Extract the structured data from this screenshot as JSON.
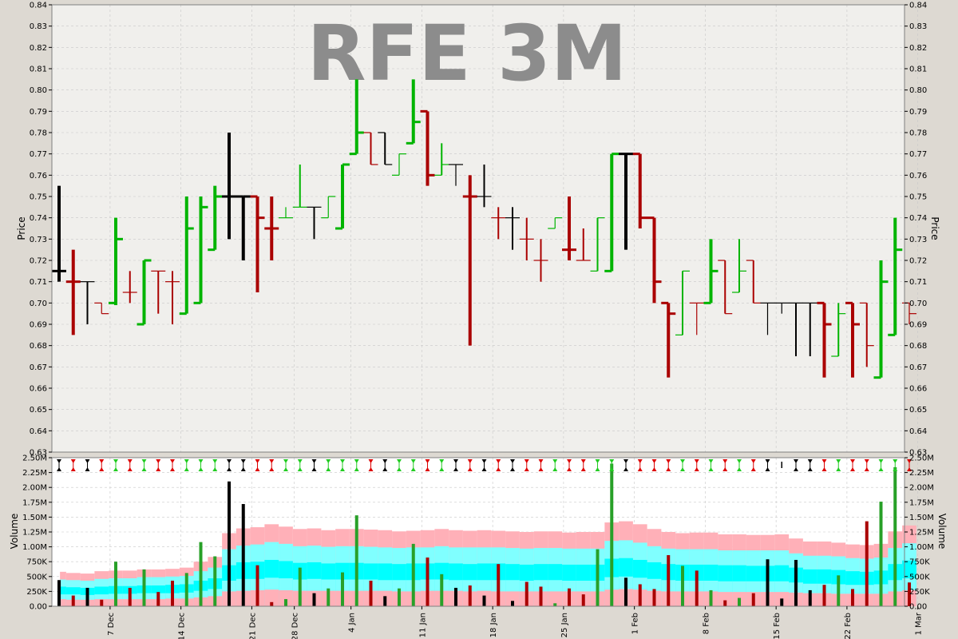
{
  "chart_data": {
    "type": "ohlc",
    "title": "RFE 3M",
    "price_panel": {
      "ylabel": "Price",
      "ylim": [
        0.63,
        0.84
      ],
      "yticks": [
        "0.63",
        "0.64",
        "0.65",
        "0.66",
        "0.67",
        "0.68",
        "0.69",
        "0.70",
        "0.71",
        "0.72",
        "0.73",
        "0.74",
        "0.75",
        "0.76",
        "0.77",
        "0.78",
        "0.79",
        "0.80",
        "0.81",
        "0.82",
        "0.83",
        "0.84"
      ],
      "bars": [
        {
          "t": 0,
          "o": 0.715,
          "h": 0.755,
          "l": 0.71,
          "c": 0.715,
          "col": "black"
        },
        {
          "t": 1,
          "o": 0.71,
          "h": 0.725,
          "l": 0.685,
          "c": 0.71,
          "col": "red"
        },
        {
          "t": 2,
          "o": 0.71,
          "h": 0.71,
          "l": 0.69,
          "c": 0.71,
          "col": "black"
        },
        {
          "t": 3,
          "o": 0.7,
          "h": 0.7,
          "l": 0.695,
          "c": 0.695,
          "col": "red"
        },
        {
          "t": 4,
          "o": 0.7,
          "h": 0.74,
          "l": 0.699,
          "c": 0.73,
          "col": "green"
        },
        {
          "t": 5,
          "o": 0.705,
          "h": 0.715,
          "l": 0.7,
          "c": 0.705,
          "col": "red"
        },
        {
          "t": 6,
          "o": 0.69,
          "h": 0.72,
          "l": 0.69,
          "c": 0.72,
          "col": "green"
        },
        {
          "t": 7,
          "o": 0.715,
          "h": 0.715,
          "l": 0.695,
          "c": 0.715,
          "col": "red"
        },
        {
          "t": 8,
          "o": 0.71,
          "h": 0.715,
          "l": 0.69,
          "c": 0.71,
          "col": "red"
        },
        {
          "t": 9,
          "o": 0.695,
          "h": 0.75,
          "l": 0.695,
          "c": 0.735,
          "col": "green"
        },
        {
          "t": 10,
          "o": 0.7,
          "h": 0.75,
          "l": 0.7,
          "c": 0.745,
          "col": "green"
        },
        {
          "t": 11,
          "o": 0.725,
          "h": 0.755,
          "l": 0.725,
          "c": 0.75,
          "col": "green"
        },
        {
          "t": 12,
          "o": 0.75,
          "h": 0.78,
          "l": 0.73,
          "c": 0.75,
          "col": "black"
        },
        {
          "t": 13,
          "o": 0.75,
          "h": 0.75,
          "l": 0.72,
          "c": 0.75,
          "col": "black"
        },
        {
          "t": 14,
          "o": 0.75,
          "h": 0.75,
          "l": 0.705,
          "c": 0.74,
          "col": "red"
        },
        {
          "t": 15,
          "o": 0.735,
          "h": 0.75,
          "l": 0.72,
          "c": 0.735,
          "col": "red"
        },
        {
          "t": 16,
          "o": 0.74,
          "h": 0.745,
          "l": 0.74,
          "c": 0.74,
          "col": "green"
        },
        {
          "t": 17,
          "o": 0.745,
          "h": 0.765,
          "l": 0.745,
          "c": 0.745,
          "col": "green"
        },
        {
          "t": 18,
          "o": 0.745,
          "h": 0.745,
          "l": 0.73,
          "c": 0.745,
          "col": "black"
        },
        {
          "t": 19,
          "o": 0.74,
          "h": 0.75,
          "l": 0.74,
          "c": 0.75,
          "col": "green"
        },
        {
          "t": 20,
          "o": 0.735,
          "h": 0.765,
          "l": 0.735,
          "c": 0.765,
          "col": "green"
        },
        {
          "t": 21,
          "o": 0.77,
          "h": 0.805,
          "l": 0.77,
          "c": 0.78,
          "col": "green"
        },
        {
          "t": 22,
          "o": 0.78,
          "h": 0.78,
          "l": 0.765,
          "c": 0.765,
          "col": "red"
        },
        {
          "t": 23,
          "o": 0.78,
          "h": 0.78,
          "l": 0.765,
          "c": 0.765,
          "col": "black"
        },
        {
          "t": 24,
          "o": 0.76,
          "h": 0.77,
          "l": 0.76,
          "c": 0.77,
          "col": "green"
        },
        {
          "t": 25,
          "o": 0.775,
          "h": 0.805,
          "l": 0.775,
          "c": 0.785,
          "col": "green"
        },
        {
          "t": 26,
          "o": 0.79,
          "h": 0.79,
          "l": 0.755,
          "c": 0.76,
          "col": "red"
        },
        {
          "t": 27,
          "o": 0.76,
          "h": 0.775,
          "l": 0.76,
          "c": 0.765,
          "col": "green"
        },
        {
          "t": 28,
          "o": 0.765,
          "h": 0.765,
          "l": 0.755,
          "c": 0.765,
          "col": "black"
        },
        {
          "t": 29,
          "o": 0.75,
          "h": 0.76,
          "l": 0.68,
          "c": 0.75,
          "col": "red"
        },
        {
          "t": 30,
          "o": 0.75,
          "h": 0.765,
          "l": 0.745,
          "c": 0.75,
          "col": "black"
        },
        {
          "t": 31,
          "o": 0.74,
          "h": 0.745,
          "l": 0.73,
          "c": 0.74,
          "col": "red"
        },
        {
          "t": 32,
          "o": 0.74,
          "h": 0.745,
          "l": 0.725,
          "c": 0.74,
          "col": "black"
        },
        {
          "t": 33,
          "o": 0.73,
          "h": 0.74,
          "l": 0.72,
          "c": 0.73,
          "col": "red"
        },
        {
          "t": 34,
          "o": 0.72,
          "h": 0.73,
          "l": 0.71,
          "c": 0.72,
          "col": "red"
        },
        {
          "t": 35,
          "o": 0.735,
          "h": 0.74,
          "l": 0.735,
          "c": 0.74,
          "col": "green"
        },
        {
          "t": 36,
          "o": 0.725,
          "h": 0.75,
          "l": 0.72,
          "c": 0.725,
          "col": "red"
        },
        {
          "t": 37,
          "o": 0.72,
          "h": 0.735,
          "l": 0.72,
          "c": 0.72,
          "col": "red"
        },
        {
          "t": 38,
          "o": 0.715,
          "h": 0.74,
          "l": 0.715,
          "c": 0.74,
          "col": "green"
        },
        {
          "t": 39,
          "o": 0.715,
          "h": 0.77,
          "l": 0.715,
          "c": 0.77,
          "col": "green"
        },
        {
          "t": 40,
          "o": 0.77,
          "h": 0.77,
          "l": 0.725,
          "c": 0.77,
          "col": "black"
        },
        {
          "t": 41,
          "o": 0.77,
          "h": 0.77,
          "l": 0.735,
          "c": 0.74,
          "col": "red"
        },
        {
          "t": 42,
          "o": 0.74,
          "h": 0.74,
          "l": 0.7,
          "c": 0.71,
          "col": "red"
        },
        {
          "t": 43,
          "o": 0.7,
          "h": 0.7,
          "l": 0.665,
          "c": 0.695,
          "col": "red"
        },
        {
          "t": 44,
          "o": 0.685,
          "h": 0.715,
          "l": 0.685,
          "c": 0.715,
          "col": "green"
        },
        {
          "t": 45,
          "o": 0.7,
          "h": 0.7,
          "l": 0.685,
          "c": 0.7,
          "col": "red"
        },
        {
          "t": 46,
          "o": 0.7,
          "h": 0.73,
          "l": 0.7,
          "c": 0.715,
          "col": "green"
        },
        {
          "t": 47,
          "o": 0.72,
          "h": 0.72,
          "l": 0.695,
          "c": 0.695,
          "col": "red"
        },
        {
          "t": 48,
          "o": 0.705,
          "h": 0.73,
          "l": 0.705,
          "c": 0.715,
          "col": "green"
        },
        {
          "t": 49,
          "o": 0.72,
          "h": 0.72,
          "l": 0.7,
          "c": 0.7,
          "col": "red"
        },
        {
          "t": 50,
          "o": 0.7,
          "h": 0.7,
          "l": 0.685,
          "c": 0.7,
          "col": "black"
        },
        {
          "t": 51,
          "o": 0.7,
          "h": 0.7,
          "l": 0.695,
          "c": 0.7,
          "col": "black"
        },
        {
          "t": 52,
          "o": 0.7,
          "h": 0.7,
          "l": 0.675,
          "c": 0.7,
          "col": "black"
        },
        {
          "t": 53,
          "o": 0.7,
          "h": 0.7,
          "l": 0.675,
          "c": 0.7,
          "col": "black"
        },
        {
          "t": 54,
          "o": 0.7,
          "h": 0.7,
          "l": 0.665,
          "c": 0.69,
          "col": "red"
        },
        {
          "t": 55,
          "o": 0.675,
          "h": 0.7,
          "l": 0.675,
          "c": 0.695,
          "col": "green"
        },
        {
          "t": 56,
          "o": 0.7,
          "h": 0.7,
          "l": 0.665,
          "c": 0.69,
          "col": "red"
        },
        {
          "t": 57,
          "o": 0.7,
          "h": 0.7,
          "l": 0.67,
          "c": 0.68,
          "col": "red"
        },
        {
          "t": 58,
          "o": 0.665,
          "h": 0.72,
          "l": 0.665,
          "c": 0.71,
          "col": "green"
        },
        {
          "t": 59,
          "o": 0.685,
          "h": 0.74,
          "l": 0.685,
          "c": 0.725,
          "col": "green"
        },
        {
          "t": 60,
          "o": 0.7,
          "h": 0.7,
          "l": 0.69,
          "c": 0.695,
          "col": "red"
        }
      ]
    },
    "volume_panel": {
      "ylabel": "Volume",
      "ylim": [
        0,
        2500000
      ],
      "yticks": [
        "0.00",
        "250K",
        "500K",
        "750K",
        "1.00M",
        "1.25M",
        "1.50M",
        "1.75M",
        "2.00M",
        "2.25M",
        "2.50M"
      ],
      "volumes": [
        440000,
        180000,
        310000,
        110000,
        750000,
        310000,
        620000,
        240000,
        430000,
        560000,
        1080000,
        840000,
        2100000,
        1720000,
        690000,
        70000,
        120000,
        650000,
        220000,
        300000,
        570000,
        1530000,
        430000,
        170000,
        300000,
        1050000,
        820000,
        540000,
        310000,
        350000,
        180000,
        710000,
        90000,
        410000,
        330000,
        50000,
        300000,
        200000,
        960000,
        2400000,
        480000,
        370000,
        290000,
        860000,
        680000,
        600000,
        270000,
        100000,
        140000,
        220000,
        790000,
        130000,
        780000,
        270000,
        360000,
        520000,
        290000,
        1430000,
        1760000,
        2340000,
        400000
      ],
      "bands": [
        {
          "name": "pink",
          "values": [
            580000,
            560000,
            550000,
            590000,
            600000,
            600000,
            620000,
            620000,
            630000,
            650000,
            750000,
            830000,
            1230000,
            1310000,
            1330000,
            1380000,
            1340000,
            1300000,
            1310000,
            1280000,
            1300000,
            1300000,
            1290000,
            1280000,
            1260000,
            1270000,
            1280000,
            1300000,
            1280000,
            1270000,
            1280000,
            1270000,
            1260000,
            1250000,
            1260000,
            1260000,
            1240000,
            1250000,
            1250000,
            1410000,
            1430000,
            1380000,
            1300000,
            1250000,
            1230000,
            1240000,
            1240000,
            1210000,
            1210000,
            1200000,
            1200000,
            1210000,
            1140000,
            1090000,
            1090000,
            1070000,
            1040000,
            1030000,
            1050000,
            1260000,
            1360000
          ]
        },
        {
          "name": "cyan-light",
          "values": [
            450000,
            440000,
            430000,
            460000,
            470000,
            470000,
            490000,
            490000,
            500000,
            510000,
            590000,
            650000,
            960000,
            1020000,
            1040000,
            1080000,
            1050000,
            1010000,
            1020000,
            1000000,
            1010000,
            1010000,
            1000000,
            990000,
            980000,
            990000,
            990000,
            1010000,
            990000,
            990000,
            990000,
            990000,
            980000,
            970000,
            980000,
            980000,
            970000,
            970000,
            970000,
            1100000,
            1110000,
            1070000,
            1010000,
            970000,
            960000,
            960000,
            960000,
            940000,
            940000,
            940000,
            940000,
            940000,
            890000,
            850000,
            850000,
            840000,
            810000,
            800000,
            820000,
            980000,
            1060000
          ]
        },
        {
          "name": "cyan",
          "values": [
            330000,
            320000,
            310000,
            330000,
            340000,
            340000,
            350000,
            350000,
            360000,
            370000,
            430000,
            470000,
            690000,
            740000,
            750000,
            780000,
            760000,
            730000,
            740000,
            720000,
            730000,
            730000,
            720000,
            720000,
            710000,
            720000,
            720000,
            730000,
            720000,
            710000,
            720000,
            720000,
            710000,
            700000,
            710000,
            710000,
            700000,
            700000,
            700000,
            800000,
            810000,
            780000,
            740000,
            710000,
            700000,
            700000,
            700000,
            690000,
            690000,
            680000,
            680000,
            690000,
            650000,
            620000,
            620000,
            610000,
            590000,
            580000,
            600000,
            710000,
            770000
          ]
        },
        {
          "name": "cyan-light-2",
          "values": [
            200000,
            200000,
            190000,
            200000,
            210000,
            210000,
            220000,
            220000,
            220000,
            230000,
            260000,
            290000,
            430000,
            460000,
            460000,
            480000,
            470000,
            450000,
            460000,
            450000,
            450000,
            450000,
            450000,
            440000,
            440000,
            440000,
            450000,
            450000,
            440000,
            440000,
            440000,
            440000,
            440000,
            430000,
            440000,
            440000,
            430000,
            430000,
            430000,
            490000,
            500000,
            480000,
            460000,
            440000,
            430000,
            430000,
            430000,
            420000,
            420000,
            420000,
            420000,
            420000,
            400000,
            380000,
            380000,
            370000,
            360000,
            360000,
            370000,
            440000,
            470000
          ]
        },
        {
          "name": "pink-base",
          "values": [
            120000,
            110000,
            110000,
            120000,
            120000,
            120000,
            120000,
            120000,
            130000,
            130000,
            150000,
            170000,
            250000,
            260000,
            270000,
            280000,
            270000,
            260000,
            260000,
            260000,
            260000,
            260000,
            260000,
            260000,
            250000,
            250000,
            260000,
            260000,
            260000,
            250000,
            260000,
            250000,
            250000,
            250000,
            250000,
            250000,
            250000,
            250000,
            250000,
            280000,
            290000,
            280000,
            260000,
            250000,
            250000,
            250000,
            250000,
            240000,
            240000,
            240000,
            240000,
            240000,
            230000,
            220000,
            220000,
            210000,
            210000,
            210000,
            210000,
            250000,
            270000
          ]
        }
      ]
    },
    "x_ticks": [
      {
        "label": "7 Dec",
        "t": 3.6
      },
      {
        "label": "14 Dec",
        "t": 8.6
      },
      {
        "label": "21 Dec",
        "t": 13.6
      },
      {
        "label": "28 Dec",
        "t": 16.6
      },
      {
        "label": "4 Jan",
        "t": 20.6
      },
      {
        "label": "11 Jan",
        "t": 25.6
      },
      {
        "label": "18 Jan",
        "t": 30.6
      },
      {
        "label": "25 Jan",
        "t": 35.6
      },
      {
        "label": "1 Feb",
        "t": 40.6
      },
      {
        "label": "8 Feb",
        "t": 45.6
      },
      {
        "label": "15 Feb",
        "t": 50.6
      },
      {
        "label": "22 Feb",
        "t": 55.6
      },
      {
        "label": "1 Mar",
        "t": 60.6
      }
    ],
    "colors": {
      "green": "#00b400",
      "red": "#aa0000",
      "black": "#000000",
      "vgreen": "#28a028",
      "band_pink": "#ffb0b8",
      "band_cyan_light": "#80ffff",
      "band_cyan": "#00ffff",
      "grid": "#c8c8c8",
      "panel_bg": "#f0efec"
    }
  }
}
